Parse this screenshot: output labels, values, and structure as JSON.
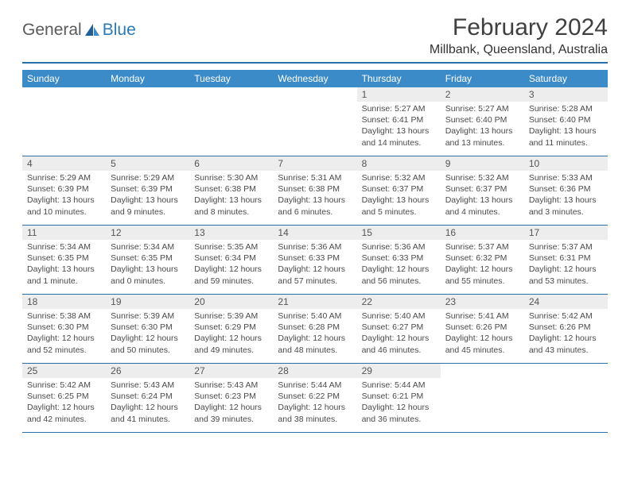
{
  "brand": {
    "part1": "General",
    "part2": "Blue"
  },
  "title": "February 2024",
  "location": "Millbank, Queensland, Australia",
  "colors": {
    "header_bar": "#3b8bc8",
    "rule": "#2a6fa8",
    "daynum_bg": "#ededed",
    "text": "#4a4a4a"
  },
  "dayNames": [
    "Sunday",
    "Monday",
    "Tuesday",
    "Wednesday",
    "Thursday",
    "Friday",
    "Saturday"
  ],
  "weeks": [
    [
      {
        "n": "",
        "sr": "",
        "ss": "",
        "dl": ""
      },
      {
        "n": "",
        "sr": "",
        "ss": "",
        "dl": ""
      },
      {
        "n": "",
        "sr": "",
        "ss": "",
        "dl": ""
      },
      {
        "n": "",
        "sr": "",
        "ss": "",
        "dl": ""
      },
      {
        "n": "1",
        "sr": "Sunrise: 5:27 AM",
        "ss": "Sunset: 6:41 PM",
        "dl": "Daylight: 13 hours and 14 minutes."
      },
      {
        "n": "2",
        "sr": "Sunrise: 5:27 AM",
        "ss": "Sunset: 6:40 PM",
        "dl": "Daylight: 13 hours and 13 minutes."
      },
      {
        "n": "3",
        "sr": "Sunrise: 5:28 AM",
        "ss": "Sunset: 6:40 PM",
        "dl": "Daylight: 13 hours and 11 minutes."
      }
    ],
    [
      {
        "n": "4",
        "sr": "Sunrise: 5:29 AM",
        "ss": "Sunset: 6:39 PM",
        "dl": "Daylight: 13 hours and 10 minutes."
      },
      {
        "n": "5",
        "sr": "Sunrise: 5:29 AM",
        "ss": "Sunset: 6:39 PM",
        "dl": "Daylight: 13 hours and 9 minutes."
      },
      {
        "n": "6",
        "sr": "Sunrise: 5:30 AM",
        "ss": "Sunset: 6:38 PM",
        "dl": "Daylight: 13 hours and 8 minutes."
      },
      {
        "n": "7",
        "sr": "Sunrise: 5:31 AM",
        "ss": "Sunset: 6:38 PM",
        "dl": "Daylight: 13 hours and 6 minutes."
      },
      {
        "n": "8",
        "sr": "Sunrise: 5:32 AM",
        "ss": "Sunset: 6:37 PM",
        "dl": "Daylight: 13 hours and 5 minutes."
      },
      {
        "n": "9",
        "sr": "Sunrise: 5:32 AM",
        "ss": "Sunset: 6:37 PM",
        "dl": "Daylight: 13 hours and 4 minutes."
      },
      {
        "n": "10",
        "sr": "Sunrise: 5:33 AM",
        "ss": "Sunset: 6:36 PM",
        "dl": "Daylight: 13 hours and 3 minutes."
      }
    ],
    [
      {
        "n": "11",
        "sr": "Sunrise: 5:34 AM",
        "ss": "Sunset: 6:35 PM",
        "dl": "Daylight: 13 hours and 1 minute."
      },
      {
        "n": "12",
        "sr": "Sunrise: 5:34 AM",
        "ss": "Sunset: 6:35 PM",
        "dl": "Daylight: 13 hours and 0 minutes."
      },
      {
        "n": "13",
        "sr": "Sunrise: 5:35 AM",
        "ss": "Sunset: 6:34 PM",
        "dl": "Daylight: 12 hours and 59 minutes."
      },
      {
        "n": "14",
        "sr": "Sunrise: 5:36 AM",
        "ss": "Sunset: 6:33 PM",
        "dl": "Daylight: 12 hours and 57 minutes."
      },
      {
        "n": "15",
        "sr": "Sunrise: 5:36 AM",
        "ss": "Sunset: 6:33 PM",
        "dl": "Daylight: 12 hours and 56 minutes."
      },
      {
        "n": "16",
        "sr": "Sunrise: 5:37 AM",
        "ss": "Sunset: 6:32 PM",
        "dl": "Daylight: 12 hours and 55 minutes."
      },
      {
        "n": "17",
        "sr": "Sunrise: 5:37 AM",
        "ss": "Sunset: 6:31 PM",
        "dl": "Daylight: 12 hours and 53 minutes."
      }
    ],
    [
      {
        "n": "18",
        "sr": "Sunrise: 5:38 AM",
        "ss": "Sunset: 6:30 PM",
        "dl": "Daylight: 12 hours and 52 minutes."
      },
      {
        "n": "19",
        "sr": "Sunrise: 5:39 AM",
        "ss": "Sunset: 6:30 PM",
        "dl": "Daylight: 12 hours and 50 minutes."
      },
      {
        "n": "20",
        "sr": "Sunrise: 5:39 AM",
        "ss": "Sunset: 6:29 PM",
        "dl": "Daylight: 12 hours and 49 minutes."
      },
      {
        "n": "21",
        "sr": "Sunrise: 5:40 AM",
        "ss": "Sunset: 6:28 PM",
        "dl": "Daylight: 12 hours and 48 minutes."
      },
      {
        "n": "22",
        "sr": "Sunrise: 5:40 AM",
        "ss": "Sunset: 6:27 PM",
        "dl": "Daylight: 12 hours and 46 minutes."
      },
      {
        "n": "23",
        "sr": "Sunrise: 5:41 AM",
        "ss": "Sunset: 6:26 PM",
        "dl": "Daylight: 12 hours and 45 minutes."
      },
      {
        "n": "24",
        "sr": "Sunrise: 5:42 AM",
        "ss": "Sunset: 6:26 PM",
        "dl": "Daylight: 12 hours and 43 minutes."
      }
    ],
    [
      {
        "n": "25",
        "sr": "Sunrise: 5:42 AM",
        "ss": "Sunset: 6:25 PM",
        "dl": "Daylight: 12 hours and 42 minutes."
      },
      {
        "n": "26",
        "sr": "Sunrise: 5:43 AM",
        "ss": "Sunset: 6:24 PM",
        "dl": "Daylight: 12 hours and 41 minutes."
      },
      {
        "n": "27",
        "sr": "Sunrise: 5:43 AM",
        "ss": "Sunset: 6:23 PM",
        "dl": "Daylight: 12 hours and 39 minutes."
      },
      {
        "n": "28",
        "sr": "Sunrise: 5:44 AM",
        "ss": "Sunset: 6:22 PM",
        "dl": "Daylight: 12 hours and 38 minutes."
      },
      {
        "n": "29",
        "sr": "Sunrise: 5:44 AM",
        "ss": "Sunset: 6:21 PM",
        "dl": "Daylight: 12 hours and 36 minutes."
      },
      {
        "n": "",
        "sr": "",
        "ss": "",
        "dl": ""
      },
      {
        "n": "",
        "sr": "",
        "ss": "",
        "dl": ""
      }
    ]
  ]
}
